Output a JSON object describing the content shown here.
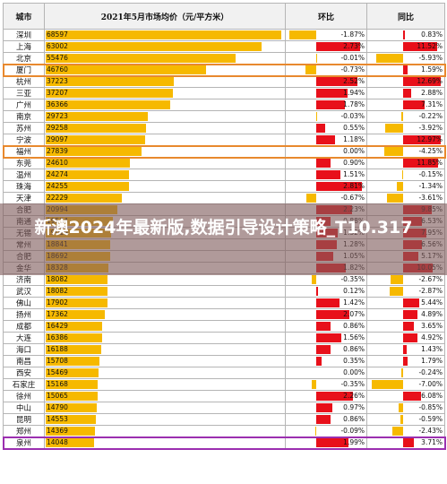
{
  "header": {
    "city": "城市",
    "price": "2021年5月市场均价（元/平方米）",
    "mom": "环比",
    "yoy": "同比"
  },
  "banner": "新澳2024年最新版,数据引导设计策略_T10.317",
  "colors": {
    "price_bar": "#f6b900",
    "mom_up": "#e8101a",
    "mom_down": "#f6b900",
    "yoy_up": "#e8101a",
    "yoy_down": "#f6b900",
    "highlight": "#e8892e"
  },
  "rows": [
    {
      "city": "深圳",
      "price": "68597",
      "mom": "-1.87%",
      "yoy": "0.83%"
    },
    {
      "city": "上海",
      "price": "63002",
      "mom": "2.73%",
      "yoy": "11.52%"
    },
    {
      "city": "北京",
      "price": "55476",
      "mom": "-0.01%",
      "yoy": "-5.93%"
    },
    {
      "city": "厦门",
      "price": "46760",
      "mom": "-0.73%",
      "yoy": "1.59%"
    },
    {
      "city": "杭州",
      "price": "37223",
      "mom": "2.52%",
      "yoy": "12.69%"
    },
    {
      "city": "三亚",
      "price": "37207",
      "mom": "1.94%",
      "yoy": "2.88%"
    },
    {
      "city": "广州",
      "price": "36366",
      "mom": "1.78%",
      "yoy": "7.31%"
    },
    {
      "city": "南京",
      "price": "29723",
      "mom": "-0.03%",
      "yoy": "-0.22%"
    },
    {
      "city": "苏州",
      "price": "29258",
      "mom": "0.55%",
      "yoy": "-3.92%"
    },
    {
      "city": "宁波",
      "price": "29097",
      "mom": "1.18%",
      "yoy": "12.97%"
    },
    {
      "city": "福州",
      "price": "27839",
      "mom": "0.00%",
      "yoy": "-4.25%"
    },
    {
      "city": "东莞",
      "price": "24610",
      "mom": "0.90%",
      "yoy": "11.85%"
    },
    {
      "city": "温州",
      "price": "24274",
      "mom": "1.51%",
      "yoy": "-0.15%"
    },
    {
      "city": "珠海",
      "price": "24255",
      "mom": "2.81%",
      "yoy": "-1.34%"
    },
    {
      "city": "天津",
      "price": "22229",
      "mom": "-0.67%",
      "yoy": "-3.61%"
    },
    {
      "city": "合肥",
      "price": "20994",
      "mom": "2.23%",
      "yoy": "9.85%"
    },
    {
      "city": "南通",
      "price": "19534",
      "mom": "0.88%",
      "yoy": "6.53%"
    },
    {
      "city": "无锡",
      "price": "19019",
      "mom": "1.32%",
      "yoy": "7.95%"
    },
    {
      "city": "常州",
      "price": "18841",
      "mom": "1.28%",
      "yoy": "6.56%"
    },
    {
      "city": "合肥",
      "price": "18692",
      "mom": "1.05%",
      "yoy": "5.17%"
    },
    {
      "city": "金华",
      "price": "18328",
      "mom": "1.82%",
      "yoy": "10.05%"
    },
    {
      "city": "济南",
      "price": "18082",
      "mom": "-0.35%",
      "yoy": "-2.67%"
    },
    {
      "city": "武汉",
      "price": "18082",
      "mom": "0.12%",
      "yoy": "-2.87%"
    },
    {
      "city": "佛山",
      "price": "17902",
      "mom": "1.42%",
      "yoy": "5.44%"
    },
    {
      "city": "扬州",
      "price": "17362",
      "mom": "2.07%",
      "yoy": "4.89%"
    },
    {
      "city": "成都",
      "price": "16429",
      "mom": "0.86%",
      "yoy": "3.65%"
    },
    {
      "city": "大连",
      "price": "16386",
      "mom": "1.56%",
      "yoy": "4.92%"
    },
    {
      "city": "海口",
      "price": "16188",
      "mom": "0.86%",
      "yoy": "1.43%"
    },
    {
      "city": "南昌",
      "price": "15708",
      "mom": "0.35%",
      "yoy": "1.79%"
    },
    {
      "city": "西安",
      "price": "15469",
      "mom": "0.00%",
      "yoy": "-0.24%"
    },
    {
      "city": "石家庄",
      "price": "15168",
      "mom": "-0.35%",
      "yoy": "-7.00%"
    },
    {
      "city": "徐州",
      "price": "15065",
      "mom": "2.26%",
      "yoy": "6.08%"
    },
    {
      "city": "中山",
      "price": "14790",
      "mom": "0.97%",
      "yoy": "-0.85%"
    },
    {
      "city": "昆明",
      "price": "14553",
      "mom": "0.86%",
      "yoy": "-0.59%"
    },
    {
      "city": "郑州",
      "price": "14369",
      "mom": "-0.09%",
      "yoy": "-2.43%"
    },
    {
      "city": "泉州",
      "price": "14048",
      "mom": "1.99%",
      "yoy": "3.71%"
    }
  ]
}
